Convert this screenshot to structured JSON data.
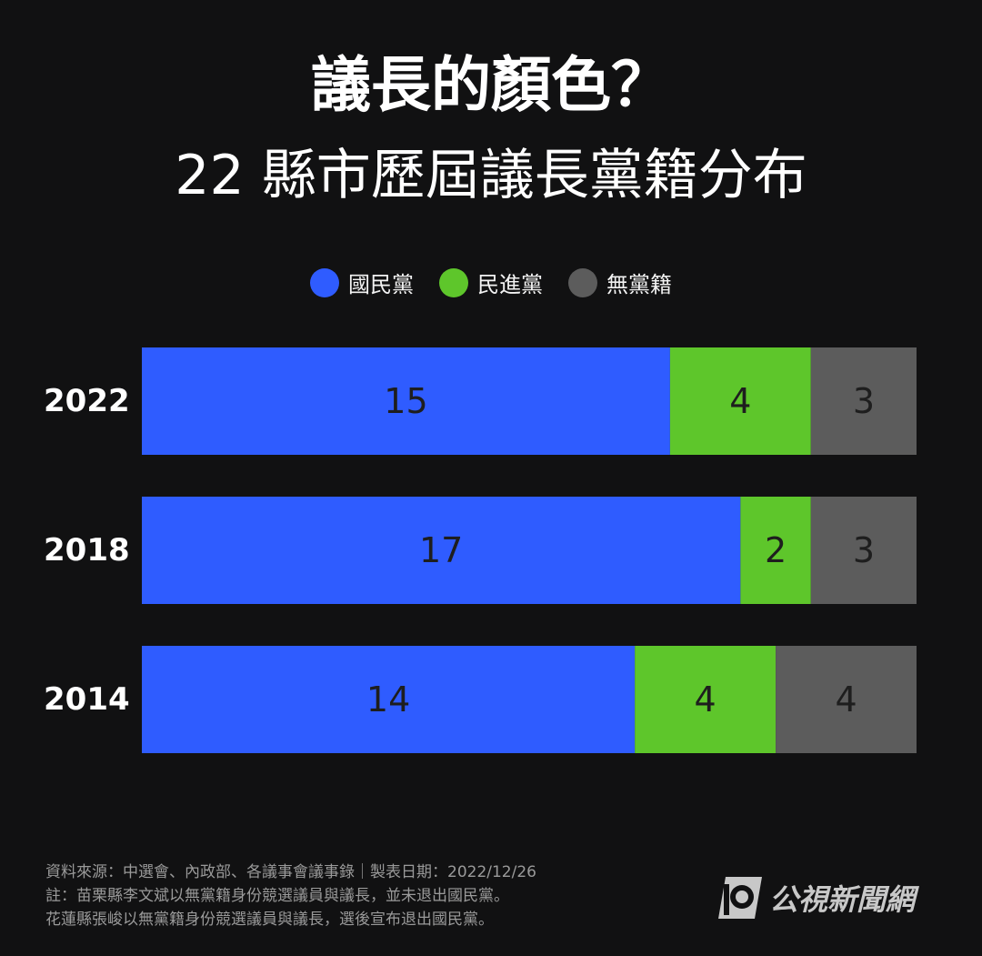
{
  "header": {
    "title": "議長的顏色？",
    "subtitle": "22 縣市歷屆議長黨籍分布"
  },
  "legend": [
    {
      "label": "國民黨",
      "color": "#2f5cff"
    },
    {
      "label": "民進黨",
      "color": "#5ec62b"
    },
    {
      "label": "無黨籍",
      "color": "#5c5c5c"
    }
  ],
  "chart_data": {
    "type": "bar",
    "orientation": "horizontal-stacked",
    "categories": [
      "2022",
      "2018",
      "2014"
    ],
    "series": [
      {
        "name": "國民黨",
        "color": "#2f5cff",
        "values": [
          15,
          17,
          14
        ]
      },
      {
        "name": "民進黨",
        "color": "#5ec62b",
        "values": [
          4,
          2,
          4
        ]
      },
      {
        "name": "無黨籍",
        "color": "#5c5c5c",
        "values": [
          3,
          3,
          4
        ]
      }
    ],
    "xlim": [
      0,
      22
    ],
    "grid": false,
    "legend_position": "top-center"
  },
  "footer": {
    "source": "資料來源：中選會、內政部、各議事會議事錄｜製表日期：2022/12/26",
    "note1": "註：苗栗縣李文斌以無黨籍身份競選議員與議長，並未退出國民黨。",
    "note2": "花蓮縣張峻以無黨籍身份競選議員與議長，選後宣布退出國民黨。"
  },
  "logo": {
    "text": "公視新聞網",
    "icon": "pts-logo-icon"
  }
}
